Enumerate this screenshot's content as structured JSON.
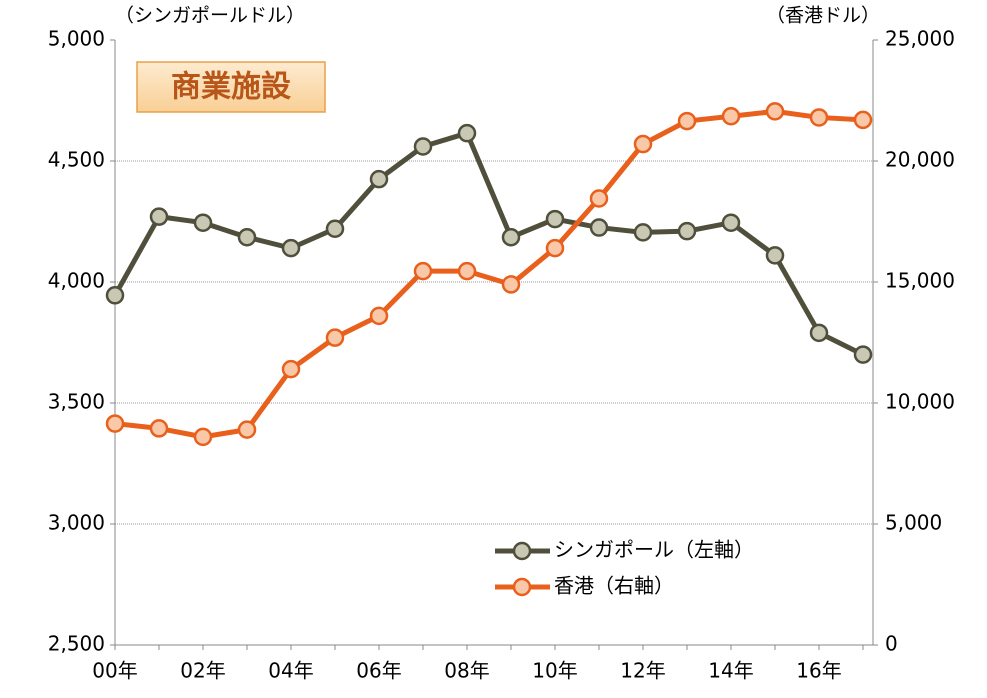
{
  "chart_data": {
    "type": "line",
    "y_axis_label": "（シンガポールドル）",
    "y2_axis_label": "（香港ドル）",
    "annotation": "商業施設",
    "categories": [
      "00年",
      null,
      "02年",
      null,
      "04年",
      null,
      "06年",
      null,
      "08年",
      null,
      "10年",
      null,
      "12年",
      null,
      "14年",
      null,
      "16年",
      null
    ],
    "series": [
      {
        "name": "シンガポール（左軸）",
        "color": "#4f4f3c",
        "marker_fill": "#c8c8b4",
        "values": [
          3945,
          4270,
          4245,
          4185,
          4140,
          4220,
          4425,
          4560,
          4615,
          4185,
          4260,
          4225,
          4205,
          4210,
          4245,
          4110,
          3790,
          3700
        ]
      },
      {
        "name": "香港（右軸）",
        "color": "#e8601c",
        "marker_fill": "#f8c8a8",
        "axis": "y2",
        "values": [
          9150,
          8950,
          8600,
          8900,
          11400,
          12700,
          13600,
          15450,
          15450,
          14900,
          16400,
          18450,
          20700,
          21650,
          21850,
          22050,
          21800,
          21700
        ]
      }
    ],
    "ylim": [
      2500,
      5000
    ],
    "yticks": [
      {
        "value": 2500,
        "label": "2,500"
      },
      {
        "value": 3000,
        "label": "3,000"
      },
      {
        "value": 3500,
        "label": "3,500"
      },
      {
        "value": 4000,
        "label": "4,000"
      },
      {
        "value": 4500,
        "label": "4,500"
      },
      {
        "value": 5000,
        "label": "5,000"
      }
    ],
    "y2lim": [
      0,
      25000
    ],
    "y2ticks": [
      0,
      {
        "value": 5000,
        "label": "5,000"
      },
      {
        "value": 10000,
        "label": "10,000"
      },
      {
        "value": 15000,
        "label": "15,000"
      },
      {
        "value": 20000,
        "label": "20,000"
      },
      {
        "value": 25000,
        "label": "25,000"
      }
    ],
    "grid": true,
    "legend": "lower right"
  }
}
